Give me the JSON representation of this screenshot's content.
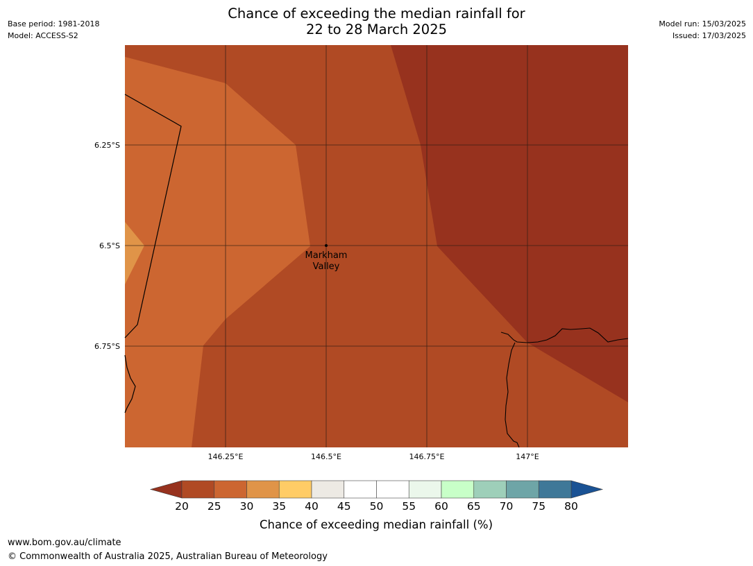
{
  "title_line1": "Chance of exceeding the median rainfall for",
  "title_line2": "22 to 28 March 2025",
  "base_period": "Base period: 1981-2018",
  "model": "Model: ACCESS-S2",
  "model_run": "Model run: 15/03/2025",
  "issued": "Issued: 17/03/2025",
  "footer_url": "www.bom.gov.au/climate",
  "footer_copyright": "© Commonwealth of Australia 2025, Australian Bureau of Meteorology",
  "map": {
    "lon_range": [
      146.0,
      147.25
    ],
    "lat_range": [
      -7.0,
      -6.0
    ],
    "lon_ticks": [
      146.25,
      146.5,
      146.75,
      147.0
    ],
    "lon_tick_labels": [
      "146.25°E",
      "146.5°E",
      "146.75°E",
      "147°E"
    ],
    "lat_ticks": [
      -6.25,
      -6.5,
      -6.75
    ],
    "lat_tick_labels": [
      "6.25°S",
      "6.5°S",
      "6.75°S"
    ],
    "place": {
      "name_line1": "Markham",
      "name_line2": "Valley",
      "lon": 146.5,
      "lat": -6.5
    },
    "colors": {
      "band_20_25": "#b04a24",
      "band_25_30": "#cc6631",
      "band_30_35": "#e09448",
      "below_20": "#97321e"
    }
  },
  "legend": {
    "title": "Chance of exceeding median rainfall (%)",
    "ticks": [
      "20",
      "25",
      "30",
      "35",
      "40",
      "45",
      "50",
      "55",
      "60",
      "65",
      "70",
      "75",
      "80"
    ],
    "colors": [
      "#b04a24",
      "#cc6631",
      "#e09448",
      "#ffcc66",
      "#edeae4",
      "#ffffff",
      "#ffffff",
      "#ebf7eb",
      "#c8ffc8",
      "#9ecfb9",
      "#6ea5a7",
      "#3f7898"
    ],
    "under_color": "#97321e",
    "over_color": "#1a5294"
  }
}
